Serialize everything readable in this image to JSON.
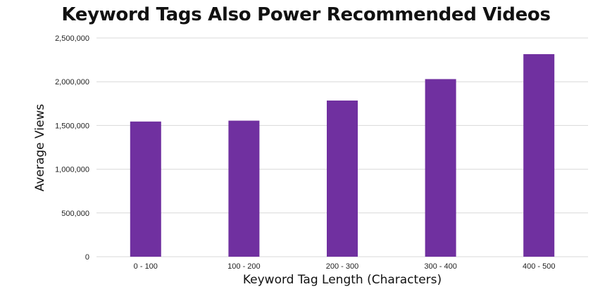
{
  "chart_data": {
    "type": "bar",
    "title": "Keyword Tags Also Power Recommended Videos",
    "xlabel": "Keyword Tag Length (Characters)",
    "ylabel": "Average Views",
    "categories": [
      "0 - 100",
      "100 - 200",
      "200 - 300",
      "300 - 400",
      "400 - 500"
    ],
    "values": [
      1545000,
      1555000,
      1785000,
      2030000,
      2315000
    ],
    "ylim": [
      0,
      2500000
    ],
    "yticks": [
      {
        "value": 0,
        "label": "0"
      },
      {
        "value": 500000,
        "label": "500,000"
      },
      {
        "value": 1000000,
        "label": "1,000,000"
      },
      {
        "value": 1500000,
        "label": "1,500,000"
      },
      {
        "value": 2000000,
        "label": "2,000,000"
      },
      {
        "value": 2500000,
        "label": "2,500,000"
      }
    ],
    "grid": true,
    "legend": "none",
    "bar_color": "#7030a0",
    "grid_color": "#d9d9d9"
  }
}
